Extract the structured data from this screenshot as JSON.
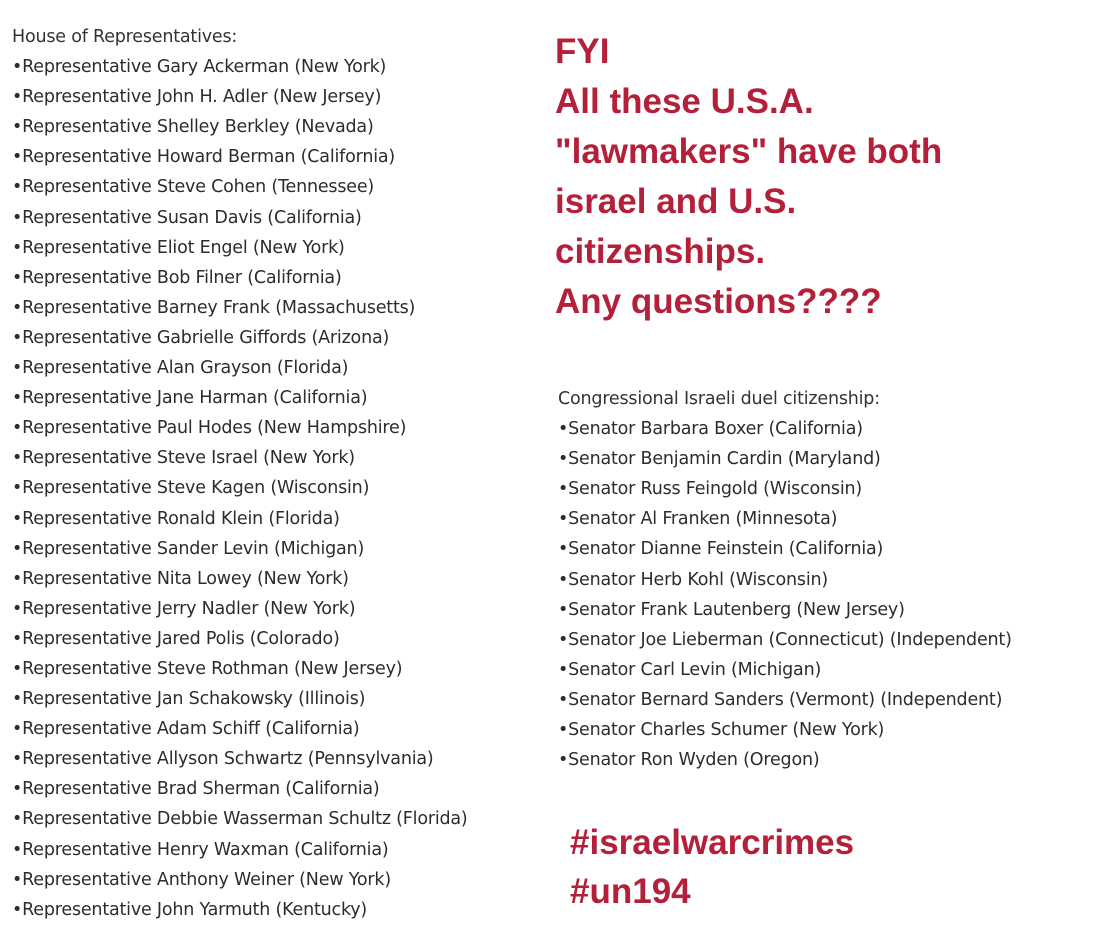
{
  "house": {
    "heading": "House of Representatives:",
    "items": [
      "•Representative Gary Ackerman (New York)",
      "•Representative John H. Adler (New Jersey)",
      "•Representative Shelley Berkley (Nevada)",
      "•Representative Howard Berman (California)",
      "•Representative Steve Cohen (Tennessee)",
      "•Representative Susan Davis (California)",
      "•Representative Eliot Engel (New York)",
      "•Representative Bob Filner (California)",
      "•Representative Barney Frank (Massachusetts)",
      "•Representative Gabrielle Giffords (Arizona)",
      "•Representative Alan Grayson (Florida)",
      "•Representative Jane Harman (California)",
      "•Representative Paul Hodes (New Hampshire)",
      "•Representative Steve Israel (New York)",
      "•Representative Steve Kagen (Wisconsin)",
      "•Representative Ronald Klein (Florida)",
      "•Representative Sander Levin (Michigan)",
      "•Representative Nita Lowey (New York)",
      "•Representative Jerry Nadler (New York)",
      "•Representative Jared Polis (Colorado)",
      "•Representative Steve Rothman (New Jersey)",
      "•Representative Jan Schakowsky (Illinois)",
      "•Representative Adam Schiff (California)",
      "•Representative Allyson Schwartz (Pennsylvania)",
      "•Representative Brad Sherman (California)",
      "•Representative Debbie Wasserman Schultz (Florida)",
      "•Representative Henry Waxman (California)",
      "•Representative Anthony Weiner (New York)",
      "•Representative John Yarmuth (Kentucky)"
    ]
  },
  "message": {
    "color": "#b3203a",
    "lines": [
      "FYI",
      "All these U.S.A.",
      "\"lawmakers\" have both",
      "israel and U.S.",
      "citizenships.",
      "Any questions????"
    ]
  },
  "senate": {
    "heading": "Congressional Israeli duel citizenship:",
    "items": [
      "•Senator Barbara Boxer (California)",
      "•Senator Benjamin Cardin (Maryland)",
      "•Senator Russ Feingold (Wisconsin)",
      "•Senator Al Franken (Minnesota)",
      "•Senator Dianne Feinstein (California)",
      "•Senator Herb Kohl (Wisconsin)",
      "•Senator Frank Lautenberg (New Jersey)",
      "•Senator Joe Lieberman (Connecticut) (Independent)",
      "•Senator Carl Levin (Michigan)",
      "•Senator Bernard Sanders (Vermont) (Independent)",
      "•Senator Charles Schumer (New York)",
      "•Senator Ron Wyden (Oregon)"
    ]
  },
  "hashtags": [
    "#israelwarcrimes",
    "#un194"
  ]
}
